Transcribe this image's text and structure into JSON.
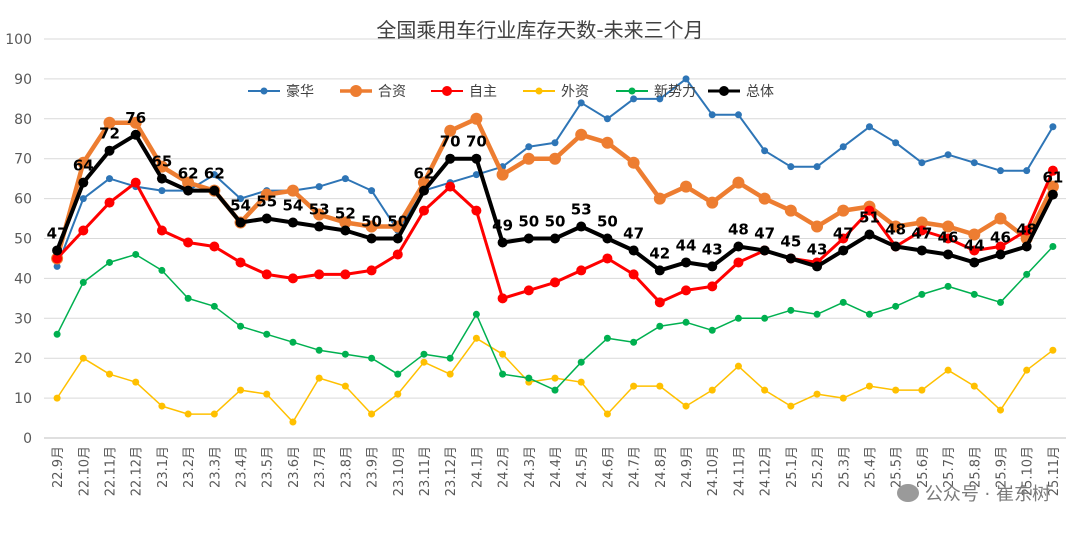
{
  "chart_data": {
    "type": "line",
    "title": "全国乘用车行业库存天数-未来三个月",
    "xlabel": "",
    "ylabel": "",
    "ylim": [
      0,
      100
    ],
    "yticks": [
      0,
      10,
      20,
      30,
      40,
      50,
      60,
      70,
      80,
      90,
      100
    ],
    "grid": true,
    "legend_position": "top-center",
    "categories": [
      "22.9月",
      "22.10月",
      "22.11月",
      "22.12月",
      "23.1月",
      "23.2月",
      "23.3月",
      "23.4月",
      "23.5月",
      "23.6月",
      "23.7月",
      "23.8月",
      "23.9月",
      "23.10月",
      "23.11月",
      "23.12月",
      "24.1月",
      "24.2月",
      "24.3月",
      "24.4月",
      "24.5月",
      "24.6月",
      "24.7月",
      "24.8月",
      "24.9月",
      "24.10月",
      "24.11月",
      "24.12月",
      "25.1月",
      "25.2月",
      "25.3月",
      "25.4月",
      "25.5月",
      "25.6月",
      "25.7月",
      "25.8月",
      "25.9月",
      "25.10月",
      "25.11月"
    ],
    "series": [
      {
        "name": "豪华",
        "color": "#2E75B6",
        "width": 2,
        "marker": 3.5,
        "values": [
          43,
          60,
          65,
          63,
          62,
          62,
          66,
          60,
          62,
          62,
          63,
          65,
          62,
          52,
          62,
          64,
          66,
          68,
          73,
          74,
          84,
          80,
          85,
          85,
          90,
          81,
          81,
          72,
          68,
          68,
          73,
          78,
          74,
          69,
          71,
          69,
          67,
          67,
          78
        ]
      },
      {
        "name": "合资",
        "color": "#ED7D31",
        "width": 4.5,
        "marker": 6,
        "values": [
          45,
          69,
          79,
          79,
          68,
          64,
          62,
          54,
          61,
          62,
          56,
          54,
          53,
          53,
          64,
          77,
          80,
          66,
          70,
          70,
          76,
          74,
          69,
          60,
          63,
          59,
          64,
          60,
          57,
          53,
          57,
          58,
          53,
          54,
          53,
          51,
          55,
          50,
          63
        ]
      },
      {
        "name": "自主",
        "color": "#FF0000",
        "width": 3,
        "marker": 5,
        "values": [
          45,
          52,
          59,
          64,
          52,
          49,
          48,
          44,
          41,
          40,
          41,
          41,
          42,
          46,
          57,
          63,
          57,
          35,
          37,
          39,
          42,
          45,
          41,
          34,
          37,
          38,
          44,
          47,
          45,
          44,
          50,
          57,
          48,
          52,
          50,
          47,
          48,
          52,
          67
        ]
      },
      {
        "name": "外资",
        "color": "#FFC000",
        "width": 1.5,
        "marker": 3.5,
        "values": [
          10,
          20,
          16,
          14,
          8,
          6,
          6,
          12,
          11,
          4,
          15,
          13,
          6,
          11,
          19,
          16,
          25,
          21,
          14,
          15,
          14,
          6,
          13,
          13,
          8,
          12,
          18,
          12,
          8,
          11,
          10,
          13,
          12,
          12,
          17,
          13,
          7,
          17,
          22
        ]
      },
      {
        "name": "新势力",
        "color": "#00B050",
        "width": 1.5,
        "marker": 3.5,
        "values": [
          26,
          39,
          44,
          46,
          42,
          35,
          33,
          28,
          26,
          24,
          22,
          21,
          20,
          16,
          21,
          20,
          31,
          16,
          15,
          12,
          19,
          25,
          24,
          28,
          29,
          27,
          30,
          30,
          32,
          31,
          34,
          31,
          33,
          36,
          38,
          36,
          34,
          41,
          48
        ]
      },
      {
        "name": "总体",
        "color": "#000000",
        "width": 4,
        "marker": 5,
        "values": [
          47,
          64,
          72,
          76,
          65,
          62,
          62,
          54,
          55,
          54,
          53,
          52,
          50,
          50,
          62,
          70,
          70,
          49,
          50,
          50,
          53,
          50,
          47,
          42,
          44,
          43,
          48,
          47,
          45,
          43,
          47,
          51,
          48,
          47,
          46,
          44,
          46,
          48,
          61
        ]
      }
    ],
    "total_labels": [
      47,
      64,
      72,
      76,
      65,
      62,
      62,
      54,
      55,
      54,
      53,
      52,
      50,
      50,
      62,
      70,
      70,
      49,
      50,
      50,
      53,
      50,
      47,
      42,
      44,
      43,
      48,
      47,
      45,
      43,
      47,
      51,
      48,
      47,
      46,
      44,
      46,
      48,
      61
    ]
  },
  "watermark": {
    "text": "公众号 · 崔东树",
    "icon": "wechat-icon"
  }
}
